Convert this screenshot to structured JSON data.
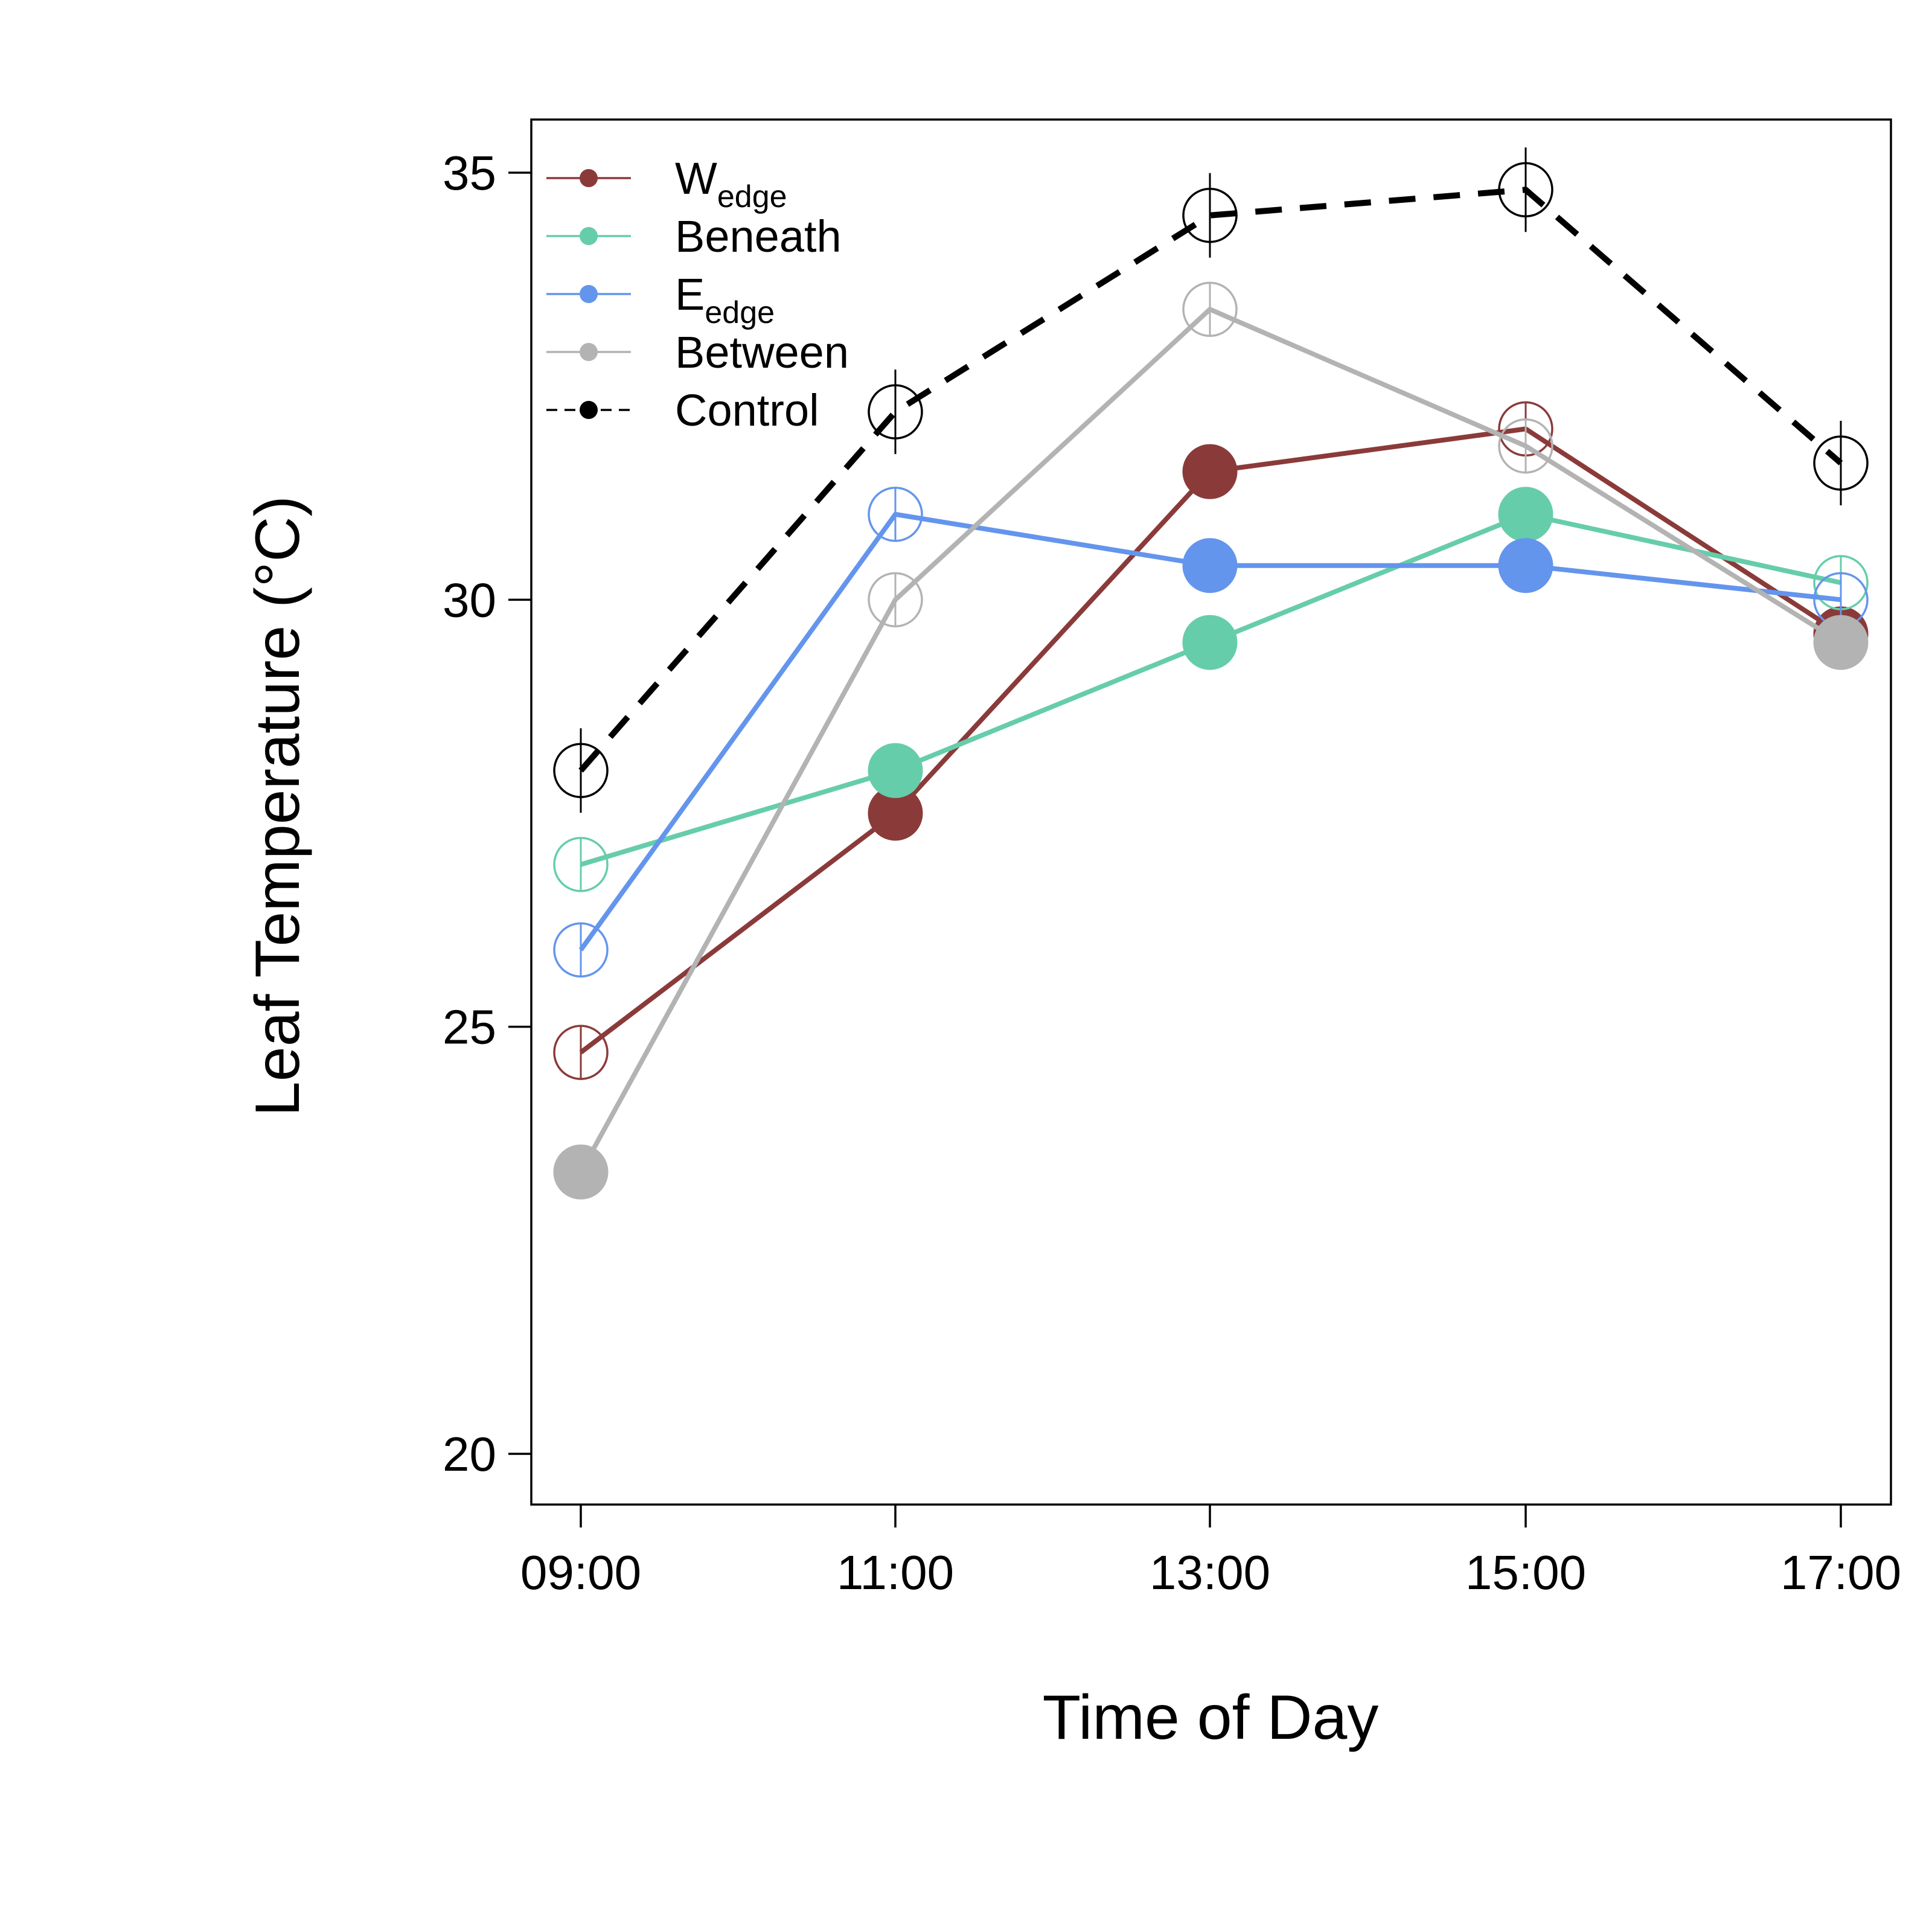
{
  "chart_data": {
    "type": "line",
    "xlabel": "Time of Day",
    "ylabel": "Leaf Temperature (°C)",
    "x": [
      "09:00",
      "11:00",
      "13:00",
      "15:00",
      "17:00"
    ],
    "ylim": [
      20,
      35
    ],
    "yticks": [
      "20",
      "25",
      "30",
      "35"
    ],
    "grid": false,
    "legend_position": "top-left",
    "series": [
      {
        "name": "W",
        "name_subscript": "edge",
        "color": "#8B3A3A",
        "dash": false,
        "values": [
          24.7,
          27.5,
          31.5,
          32.0,
          29.6
        ],
        "filled": [
          false,
          true,
          true,
          false,
          true
        ]
      },
      {
        "name": "Beneath",
        "name_subscript": "",
        "color": "#66CDAA",
        "dash": false,
        "values": [
          26.9,
          28.0,
          29.5,
          31.0,
          30.2
        ],
        "filled": [
          false,
          true,
          true,
          true,
          false
        ]
      },
      {
        "name": "E",
        "name_subscript": "edge",
        "color": "#6495ED",
        "dash": false,
        "values": [
          25.9,
          31.0,
          30.4,
          30.4,
          30.0
        ],
        "filled": [
          false,
          false,
          true,
          true,
          false
        ]
      },
      {
        "name": "Between",
        "name_subscript": "",
        "color": "#B3B3B3",
        "dash": false,
        "values": [
          23.3,
          30.0,
          33.4,
          31.8,
          29.5
        ],
        "filled": [
          true,
          false,
          false,
          false,
          true
        ]
      },
      {
        "name": "Control",
        "name_subscript": "",
        "color": "#000000",
        "dash": true,
        "values": [
          28.0,
          32.2,
          34.5,
          34.8,
          31.6
        ],
        "filled": [
          false,
          false,
          false,
          false,
          false
        ]
      }
    ]
  }
}
